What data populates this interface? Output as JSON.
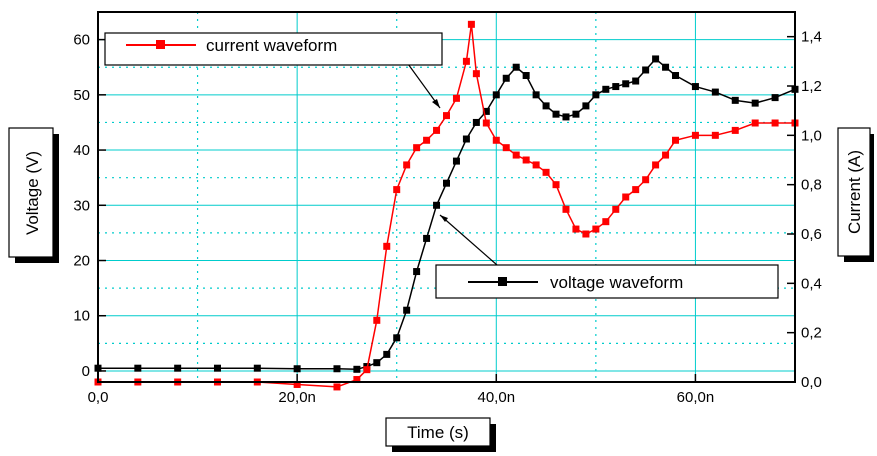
{
  "chart_data": {
    "type": "line",
    "xlabel": "Time (s)",
    "ylabel_left": "Voltage (V)",
    "ylabel_right": "Current (A)",
    "xlim": [
      0,
      7e-08
    ],
    "ylim_left": [
      -2,
      65
    ],
    "ylim_right": [
      0,
      1.5
    ],
    "x_ticks": [
      {
        "value": 0,
        "label": "0,0"
      },
      {
        "value": 2e-08,
        "label": "20,0n"
      },
      {
        "value": 4e-08,
        "label": "40,0n"
      },
      {
        "value": 6e-08,
        "label": "60,0n"
      }
    ],
    "y_left_ticks": [
      {
        "value": 0,
        "label": "0"
      },
      {
        "value": 10,
        "label": "10"
      },
      {
        "value": 20,
        "label": "20"
      },
      {
        "value": 30,
        "label": "30"
      },
      {
        "value": 40,
        "label": "40"
      },
      {
        "value": 50,
        "label": "50"
      },
      {
        "value": 60,
        "label": "60"
      }
    ],
    "y_right_ticks": [
      {
        "value": 0,
        "label": "0,0"
      },
      {
        "value": 0.2,
        "label": "0,2"
      },
      {
        "value": 0.4,
        "label": "0,4"
      },
      {
        "value": 0.6,
        "label": "0,6"
      },
      {
        "value": 0.8,
        "label": "0,8"
      },
      {
        "value": 1.0,
        "label": "1,0"
      },
      {
        "value": 1.2,
        "label": "1,2"
      },
      {
        "value": 1.4,
        "label": "1,4"
      }
    ],
    "grid": true,
    "colors": {
      "current": "#ff0000",
      "voltage": "#000000",
      "grid": "#00cccc"
    },
    "series": [
      {
        "name": "voltage waveform",
        "axis": "left",
        "x": [
          0,
          4e-09,
          8e-09,
          1.2e-08,
          1.6e-08,
          2e-08,
          2.4e-08,
          2.6e-08,
          2.7e-08,
          2.8e-08,
          2.9e-08,
          3e-08,
          3.1e-08,
          3.2e-08,
          3.3e-08,
          3.4e-08,
          3.5e-08,
          3.6e-08,
          3.7e-08,
          3.8e-08,
          3.9e-08,
          4e-08,
          4.1e-08,
          4.2e-08,
          4.3e-08,
          4.4e-08,
          4.5e-08,
          4.6e-08,
          4.7e-08,
          4.8e-08,
          4.9e-08,
          5e-08,
          5.1e-08,
          5.2e-08,
          5.3e-08,
          5.4e-08,
          5.5e-08,
          5.6e-08,
          5.7e-08,
          5.8e-08,
          6e-08,
          6.2e-08,
          6.4e-08,
          6.6e-08,
          6.8e-08,
          7e-08
        ],
        "y": [
          0.5,
          0.5,
          0.5,
          0.5,
          0.5,
          0.4,
          0.4,
          0.3,
          0.8,
          1.5,
          3.0,
          6.0,
          11.0,
          18.0,
          24.0,
          30.0,
          34.0,
          38.0,
          42.0,
          45.0,
          47.0,
          50.0,
          53.0,
          55.0,
          53.5,
          50.0,
          48.0,
          46.5,
          46.0,
          46.5,
          48.0,
          50.0,
          51.0,
          51.5,
          52.0,
          52.5,
          54.5,
          56.5,
          55.0,
          53.5,
          51.5,
          50.5,
          49.0,
          48.5,
          49.5,
          51.0
        ]
      },
      {
        "name": "current waveform",
        "axis": "right",
        "x": [
          0,
          4e-09,
          8e-09,
          1.2e-08,
          1.6e-08,
          2e-08,
          2.4e-08,
          2.6e-08,
          2.7e-08,
          2.8e-08,
          2.9e-08,
          3e-08,
          3.1e-08,
          3.2e-08,
          3.3e-08,
          3.4e-08,
          3.5e-08,
          3.6e-08,
          3.7e-08,
          3.75e-08,
          3.8e-08,
          3.9e-08,
          4e-08,
          4.1e-08,
          4.2e-08,
          4.3e-08,
          4.4e-08,
          4.5e-08,
          4.6e-08,
          4.7e-08,
          4.8e-08,
          4.9e-08,
          5e-08,
          5.1e-08,
          5.2e-08,
          5.3e-08,
          5.4e-08,
          5.5e-08,
          5.6e-08,
          5.7e-08,
          5.8e-08,
          6e-08,
          6.2e-08,
          6.4e-08,
          6.6e-08,
          6.8e-08,
          7e-08
        ],
        "y": [
          0.0,
          0.0,
          0.0,
          0.0,
          0.0,
          -0.01,
          -0.02,
          0.01,
          0.05,
          0.25,
          0.55,
          0.78,
          0.88,
          0.95,
          0.98,
          1.02,
          1.08,
          1.15,
          1.3,
          1.45,
          1.25,
          1.05,
          0.98,
          0.95,
          0.92,
          0.9,
          0.88,
          0.85,
          0.8,
          0.7,
          0.62,
          0.6,
          0.62,
          0.65,
          0.7,
          0.75,
          0.78,
          0.82,
          0.88,
          0.92,
          0.98,
          1.0,
          1.0,
          1.02,
          1.05,
          1.05,
          1.05
        ]
      }
    ],
    "legend": [
      {
        "label": "current waveform",
        "series": "current waveform"
      },
      {
        "label": "voltage waveform",
        "series": "voltage waveform"
      }
    ]
  }
}
